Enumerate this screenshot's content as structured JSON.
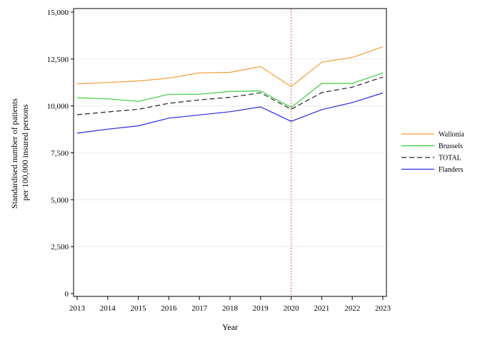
{
  "chart_data": {
    "type": "line",
    "xlabel": "Year",
    "ylabel_lines": [
      "Standardised number of patients",
      "per 100,000 insured persons"
    ],
    "x": [
      2013,
      2014,
      2015,
      2016,
      2017,
      2018,
      2019,
      2020,
      2021,
      2022,
      2023
    ],
    "x_tick_labels": [
      "2013",
      "2014",
      "2015",
      "2016",
      "2017",
      "2018",
      "2019",
      "2020",
      "2021",
      "2022",
      "2023"
    ],
    "ylim": [
      0,
      15000
    ],
    "y_ticks": [
      0,
      2500,
      5000,
      7500,
      10000,
      12500,
      15000
    ],
    "y_tick_labels": [
      "0",
      "2,500",
      "5,000",
      "7,500",
      "10,000",
      "12,500",
      "15,000"
    ],
    "grid": "horizontal",
    "reference_line_x": 2020,
    "legend_position": "right",
    "series": [
      {
        "name": "Wallonia",
        "color": "#f39c34",
        "dash": "solid",
        "values": [
          11180,
          11250,
          11330,
          11480,
          11760,
          11790,
          12100,
          11030,
          12330,
          12580,
          13150
        ]
      },
      {
        "name": "Brussels",
        "color": "#3dcc3d",
        "dash": "solid",
        "values": [
          10440,
          10380,
          10240,
          10620,
          10620,
          10770,
          10800,
          9920,
          11200,
          11200,
          11760
        ]
      },
      {
        "name": "TOTAL",
        "color": "#222222",
        "dash": "dashed",
        "values": [
          9530,
          9680,
          9820,
          10140,
          10320,
          10460,
          10700,
          9820,
          10710,
          11000,
          11540
        ]
      },
      {
        "name": "Flanders",
        "color": "#2a2ae0",
        "dash": "solid",
        "values": [
          8550,
          8760,
          8940,
          9350,
          9520,
          9690,
          9950,
          9180,
          9800,
          10180,
          10690
        ]
      }
    ]
  }
}
